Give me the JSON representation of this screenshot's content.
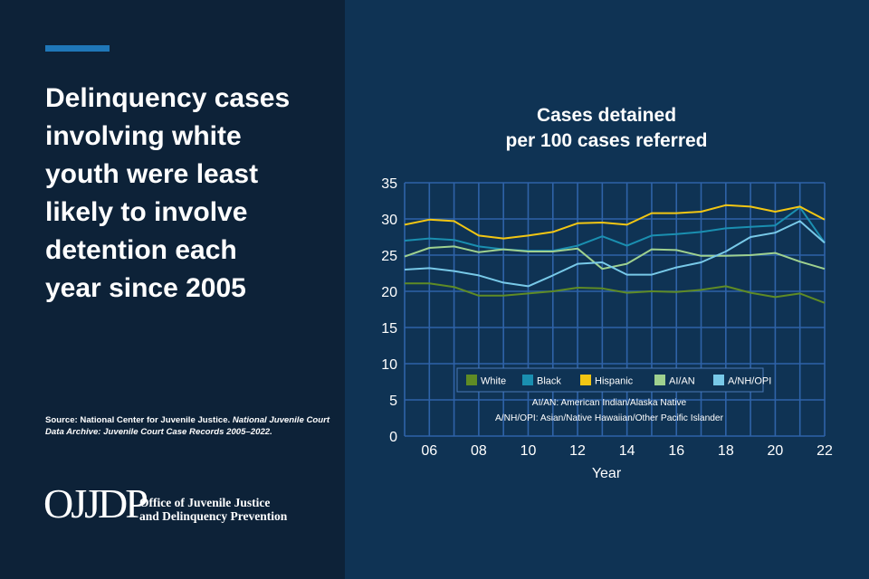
{
  "headline": {
    "lines": [
      "Delinquency cases",
      "involving white",
      "youth were least",
      "likely to involve",
      "detention each",
      "year since 2005"
    ]
  },
  "source": {
    "prefix": "Source: National Center for Juvenile Justice.",
    "italic": "National Juvenile Court Data Archive: Juvenile Court Case Records 2005–2022."
  },
  "logo": {
    "mark": "OJJDP",
    "line1": "Office of Juvenile Justice",
    "line2": "and Delinquency Prevention"
  },
  "colors": {
    "White": "#5f8b25",
    "Black": "#1a8fb0",
    "Hispanic": "#f2c613",
    "AI/AN": "#9fd18f",
    "A/NH/OPI": "#78c9e8",
    "grid": "#2f63a8"
  },
  "chart_data": {
    "type": "line",
    "title": [
      "Cases detained",
      "per 100 cases referred"
    ],
    "xlabel": "Year",
    "ylabel": "",
    "x": [
      5,
      6,
      7,
      8,
      9,
      10,
      11,
      12,
      13,
      14,
      15,
      16,
      17,
      18,
      19,
      20,
      21,
      22
    ],
    "xticks": [
      "06",
      "08",
      "10",
      "12",
      "14",
      "16",
      "18",
      "20",
      "22"
    ],
    "xtick_values": [
      6,
      8,
      10,
      12,
      14,
      16,
      18,
      20,
      22
    ],
    "xlim": [
      5,
      22
    ],
    "ylim": [
      0,
      35
    ],
    "yticks": [
      0,
      5,
      10,
      15,
      20,
      25,
      30,
      35
    ],
    "grid": true,
    "series": [
      {
        "name": "White",
        "values": [
          21.1,
          21.1,
          20.6,
          19.4,
          19.4,
          19.7,
          20.0,
          20.5,
          20.4,
          19.8,
          20.0,
          19.9,
          20.2,
          20.7,
          19.8,
          19.2,
          19.7,
          18.4
        ]
      },
      {
        "name": "Black",
        "values": [
          27.0,
          27.3,
          27.1,
          26.2,
          25.8,
          25.6,
          25.6,
          26.3,
          27.6,
          26.3,
          27.7,
          27.9,
          28.2,
          28.7,
          28.9,
          29.1,
          31.6,
          26.7
        ]
      },
      {
        "name": "Hispanic",
        "values": [
          29.2,
          29.9,
          29.7,
          27.7,
          27.3,
          27.7,
          28.2,
          29.4,
          29.5,
          29.2,
          30.8,
          30.8,
          31.0,
          31.9,
          31.7,
          31.0,
          31.7,
          29.9
        ]
      },
      {
        "name": "AI/AN",
        "values": [
          24.8,
          26.0,
          26.2,
          25.4,
          25.8,
          25.5,
          25.5,
          25.9,
          23.1,
          23.8,
          25.8,
          25.7,
          24.9,
          24.9,
          25.0,
          25.3,
          24.1,
          23.1
        ]
      },
      {
        "name": "A/NH/OPI",
        "values": [
          23.0,
          23.2,
          22.8,
          22.2,
          21.2,
          20.7,
          22.2,
          23.8,
          24.0,
          22.3,
          22.3,
          23.3,
          24.0,
          25.5,
          27.5,
          28.1,
          29.7,
          26.7
        ]
      }
    ],
    "legend": [
      "White",
      "Black",
      "Hispanic",
      "AI/AN",
      "A/NH/OPI"
    ],
    "legend_position": "lower-center",
    "notes": [
      "AI/AN: American Indian/Alaska Native",
      "A/NH/OPI: Asian/Native Hawaiian/Other Pacific Islander"
    ]
  }
}
